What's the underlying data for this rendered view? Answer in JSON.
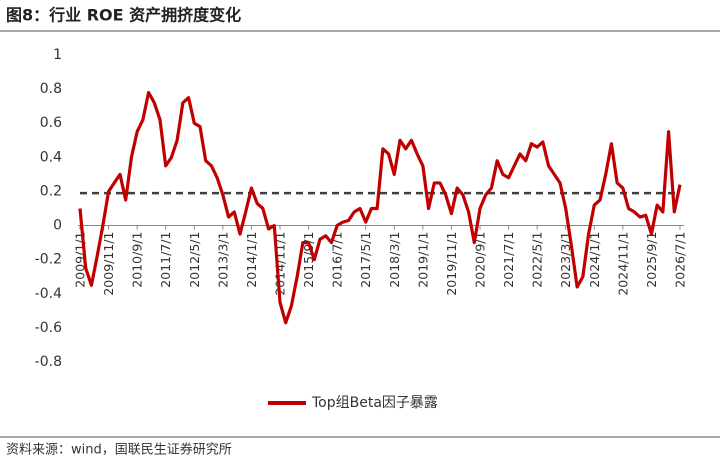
{
  "chart_data": {
    "type": "line",
    "title": "图8：行业 ROE 资产拥挤度变化",
    "source": "资料来源：wind，国联民生证券研究所",
    "categories": [
      "2009/1/1",
      null,
      null,
      null,
      null,
      "2009/11/1",
      null,
      null,
      null,
      null,
      "2010/9/1",
      null,
      null,
      null,
      null,
      "2011/7/1",
      null,
      null,
      null,
      null,
      "2012/5/1",
      null,
      null,
      null,
      null,
      "2013/3/1",
      null,
      null,
      null,
      null,
      "2014/1/1",
      null,
      null,
      null,
      null,
      "2014/11/1",
      null,
      null,
      null,
      null,
      "2015/9/1",
      null,
      null,
      null,
      null,
      "2016/7/1",
      null,
      null,
      null,
      null,
      "2017/5/1",
      null,
      null,
      null,
      null,
      "2018/3/1",
      null,
      null,
      null,
      null,
      "2019/1/1",
      null,
      null,
      null,
      null,
      "2019/11/1",
      null,
      null,
      null,
      null,
      "2020/9/1",
      null,
      null,
      null,
      null,
      "2021/7/1",
      null,
      null,
      null,
      null,
      "2022/5/1",
      null,
      null,
      null,
      null,
      "2023/3/1",
      null,
      null,
      null,
      null,
      "2024/1/1",
      null,
      null,
      null,
      null,
      "2024/11/1",
      null,
      null,
      null,
      null,
      "2025/9/1",
      null,
      null,
      null,
      null,
      "2026/7/1"
    ],
    "series": [
      {
        "name": "Top组Beta因子暴露",
        "color": "#c00000",
        "values": [
          0.1,
          -0.25,
          -0.35,
          -0.18,
          0.0,
          0.2,
          0.25,
          0.3,
          0.15,
          0.4,
          0.55,
          0.62,
          0.78,
          0.72,
          0.62,
          0.35,
          0.4,
          0.5,
          0.72,
          0.75,
          0.6,
          0.58,
          0.38,
          0.35,
          0.28,
          0.18,
          0.05,
          0.08,
          -0.05,
          0.08,
          0.22,
          0.13,
          0.1,
          -0.02,
          0.0,
          -0.45,
          -0.57,
          -0.47,
          -0.3,
          -0.1,
          -0.1,
          -0.2,
          -0.08,
          -0.06,
          -0.1,
          0.0,
          0.02,
          0.03,
          0.08,
          0.1,
          0.02,
          0.1,
          0.1,
          0.45,
          0.42,
          0.3,
          0.5,
          0.45,
          0.5,
          0.42,
          0.35,
          0.1,
          0.25,
          0.25,
          0.18,
          0.07,
          0.22,
          0.18,
          0.08,
          -0.1,
          0.1,
          0.18,
          0.22,
          0.38,
          0.3,
          0.28,
          0.35,
          0.42,
          0.38,
          0.48,
          0.46,
          0.49,
          0.35,
          0.3,
          0.25,
          0.1,
          -0.12,
          -0.36,
          -0.3,
          -0.05,
          0.12,
          0.15,
          0.3,
          0.48,
          0.25,
          0.22,
          0.1,
          0.08,
          0.05,
          0.06,
          -0.05,
          0.12,
          0.08,
          0.55,
          0.08,
          0.24
        ]
      }
    ],
    "reference_line": 0.19,
    "reference_color": "#404040",
    "ylim": [
      -0.8,
      1
    ],
    "yticks": [
      -0.8,
      -0.6,
      -0.4,
      -0.2,
      0,
      0.2,
      0.4,
      0.6,
      0.8,
      1
    ]
  }
}
